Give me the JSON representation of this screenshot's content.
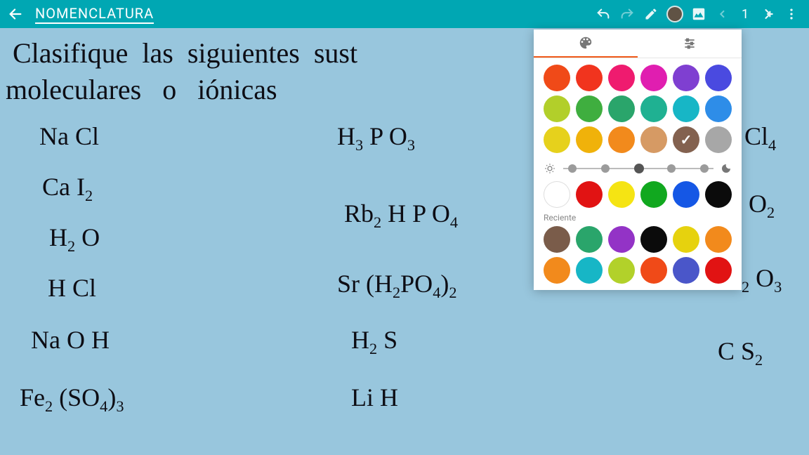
{
  "toolbar": {
    "title": "NOMENCLATURA",
    "current_color": "#6b4a3a",
    "page_number": "1"
  },
  "notes": {
    "line1": "Clasifique  las  siguientes  sust",
    "line2": "moleculares   o   iónicas",
    "col1": [
      "NaCl",
      "CaI₂",
      "H₂O",
      "HCl",
      "NaOH",
      "Fe₂(SO₄)₃"
    ],
    "col2": [
      "H₃PO₃",
      "Rb₂HPO₄",
      "Sr(H₂PO₄)₂",
      "H₂S",
      "LiH"
    ],
    "col3": [
      "Cl₄",
      "O₂",
      "₂O₃",
      "CS₂"
    ]
  },
  "picker": {
    "recent_label": "Reciente",
    "rows_main": [
      [
        "#f04a18",
        "#f1341e",
        "#ef1b6f",
        "#e01eb0",
        "#7f3fd1",
        "#4a4ae0"
      ],
      [
        "#b2cf2a",
        "#3fae3f",
        "#2aa56b",
        "#1fb192",
        "#17b6c6",
        "#2e8de8"
      ],
      [
        "#e6d11c",
        "#f0b20a",
        "#f28a1c",
        "#d69a64",
        "#83614f",
        "#a7a7a7"
      ]
    ],
    "selected_index": [
      2,
      4
    ],
    "basic_row": [
      "#ffffff",
      "#e11313",
      "#f5e413",
      "#11a81f",
      "#1557e5",
      "#0b0b0b"
    ],
    "recent_rows": [
      [
        "#7a5c4a",
        "#2aa56b",
        "#9333c6",
        "#0b0b0b",
        "#e6d20e",
        "#f28a1c"
      ],
      [
        "#f28a1c",
        "#17b6c6",
        "#b2d12a",
        "#f04a18",
        "#4a56c9",
        "#e11313"
      ]
    ],
    "brightness_dots": [
      0.06,
      0.28,
      0.5,
      0.72,
      0.94
    ],
    "brightness_sel": 0.5
  }
}
